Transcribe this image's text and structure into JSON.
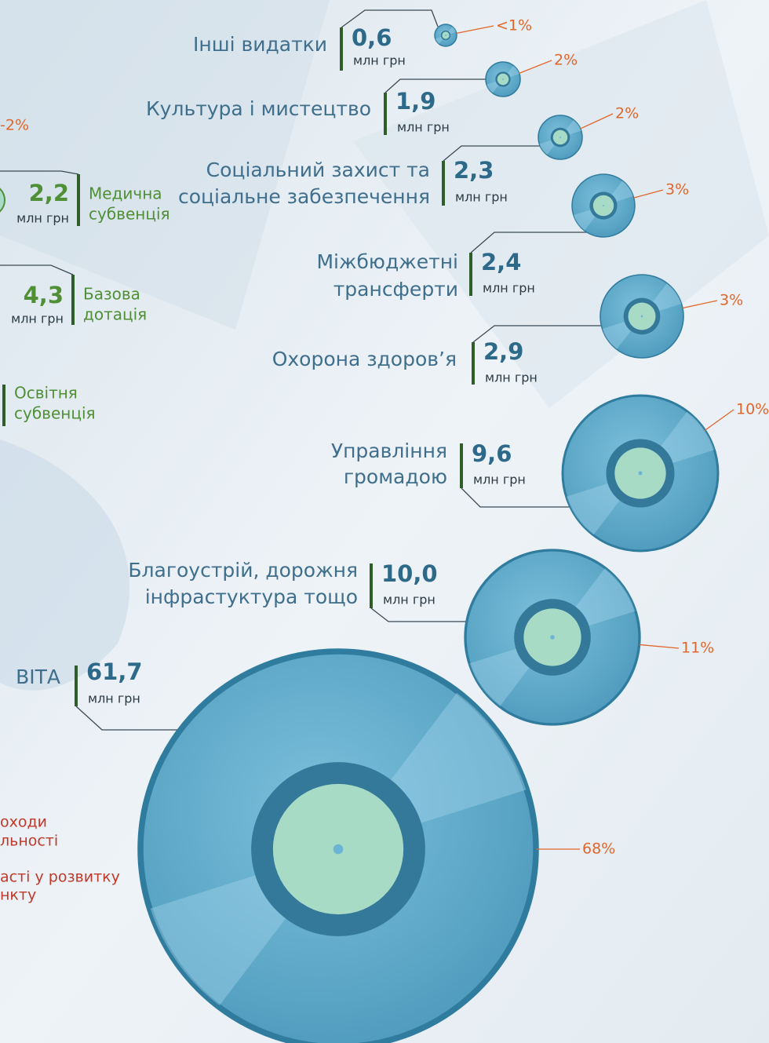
{
  "expenses": [
    {
      "label": [
        "Інші видатки"
      ],
      "value": "0,6",
      "unit": "млн грн",
      "share": "<1%"
    },
    {
      "label": [
        "Культура і мистецтво"
      ],
      "value": "1,9",
      "unit": "млн грн",
      "share": "2%"
    },
    {
      "label": [
        "Соціальний захист та",
        "соціальне забезпечення"
      ],
      "value": "2,3",
      "unit": "млн грн",
      "share": "2%"
    },
    {
      "label": [
        "Міжбюджетні",
        "трансферти"
      ],
      "value": "2,4",
      "unit": "млн грн",
      "share": "3%"
    },
    {
      "label": [
        "Охорона здоров’я"
      ],
      "value": "2,9",
      "unit": "млн грн",
      "share": "3%"
    },
    {
      "label": [
        "Управління",
        "громадою"
      ],
      "value": "9,6",
      "unit": "млн грн",
      "share": "10%"
    },
    {
      "label": [
        "Благоустрій, дорожня",
        "інфрастуктура тощо"
      ],
      "value": "10,0",
      "unit": "млн грн",
      "share": "11%"
    },
    {
      "label": [
        "ВІТА"
      ],
      "value": "61,7",
      "unit": "млн грн",
      "share": "68%"
    }
  ],
  "revenues": [
    {
      "value": "2,2",
      "unit": "млн грн",
      "label": [
        "Медична",
        "субвенція"
      ]
    },
    {
      "value": "4,3",
      "unit": "млн грн",
      "label": [
        "Базова",
        "дотація"
      ]
    },
    {
      "label": [
        "Освітня",
        "субвенція"
      ]
    }
  ],
  "revenue_share": "-2%",
  "notes": [
    "оходи",
    "льності",
    "асті у розвитку",
    "нкту"
  ]
}
